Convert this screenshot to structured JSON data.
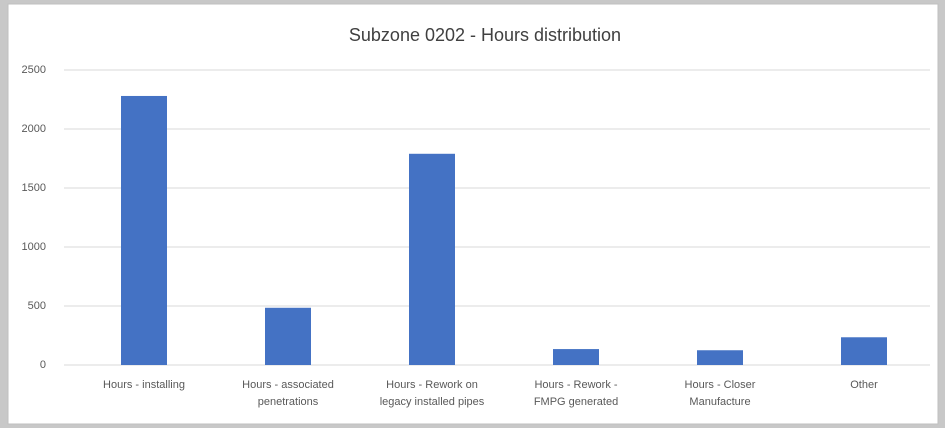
{
  "chart_data": {
    "type": "bar",
    "title": "Subzone 0202 - Hours distribution",
    "categories": [
      "Hours - installing",
      "Hours - associated\npenetrations",
      "Hours - Rework on\nlegacy installed pipes",
      "Hours - Rework -\nFMPG generated",
      "Hours - Closer\nManufacture",
      "Other"
    ],
    "values": [
      2280,
      485,
      1790,
      135,
      125,
      235
    ],
    "color": "#4472c4",
    "ylim": [
      0,
      2500
    ],
    "yticks": [
      0,
      500,
      1000,
      1500,
      2000,
      2500
    ],
    "grid": true
  }
}
